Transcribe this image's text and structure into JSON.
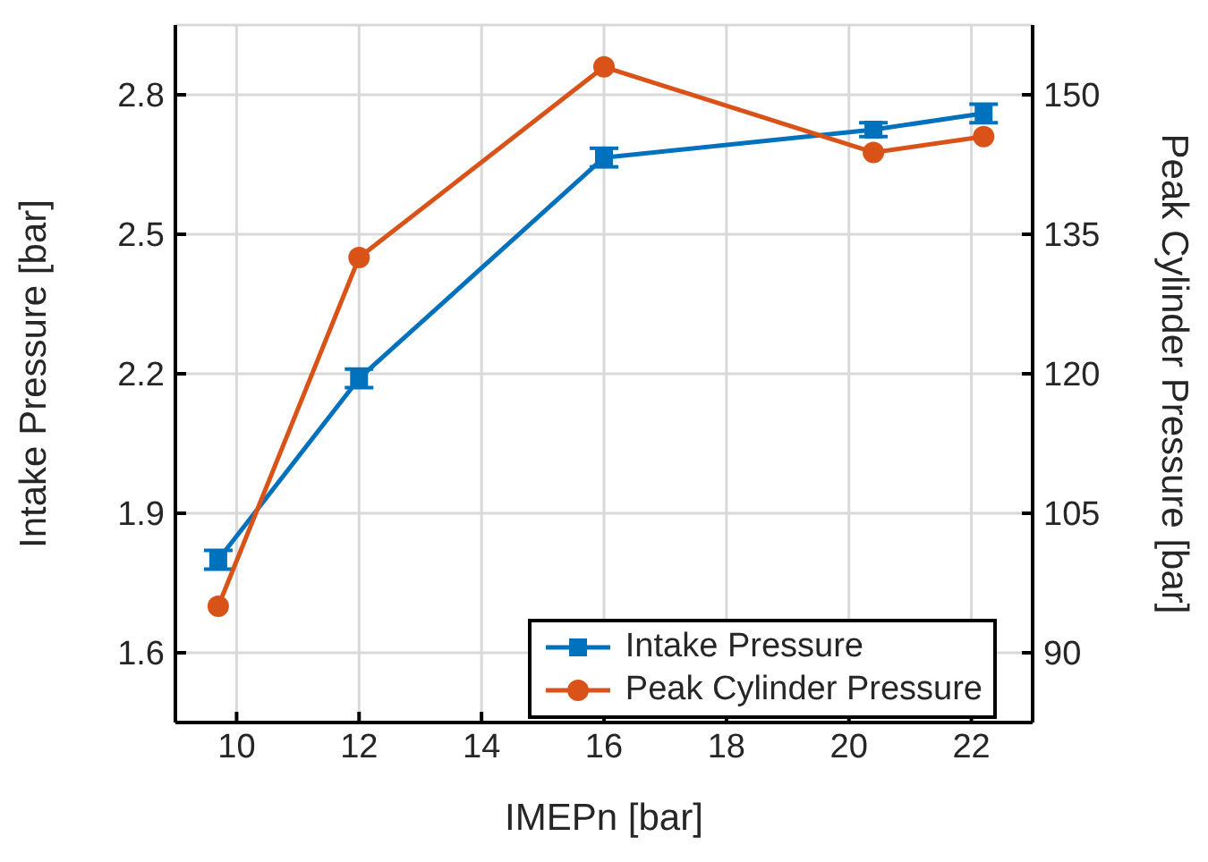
{
  "chart_data": {
    "type": "line",
    "xlabel": "IMEPn [bar]",
    "ylabel": "Intake Pressure [bar]",
    "y2label": "Peak Cylinder Pressure [bar]",
    "x": [
      9.7,
      12,
      16,
      20.4,
      22.2
    ],
    "series": [
      {
        "name": "Intake Pressure",
        "color": "#0072bd",
        "marker": "square",
        "values": [
          1.8,
          2.19,
          2.665,
          2.725,
          2.76
        ],
        "errors": [
          0.02,
          0.02,
          0.02,
          0.015,
          0.02
        ]
      },
      {
        "name": "Peak Cylinder Pressure",
        "color": "#d95319",
        "marker": "circle",
        "axis": "y2",
        "values": [
          95,
          132.5,
          153,
          143.8,
          145.5
        ]
      }
    ],
    "xlim": [
      9,
      23
    ],
    "xticks": [
      10,
      12,
      14,
      16,
      18,
      20,
      22
    ],
    "ylim": [
      1.45,
      2.95
    ],
    "yticks": [
      1.6,
      1.9,
      2.2,
      2.5,
      2.8
    ],
    "y2lim": [
      82.5,
      157.5
    ],
    "y2ticks": [
      90,
      105,
      120,
      135,
      150
    ],
    "grid": true,
    "legend": "bottom right"
  }
}
